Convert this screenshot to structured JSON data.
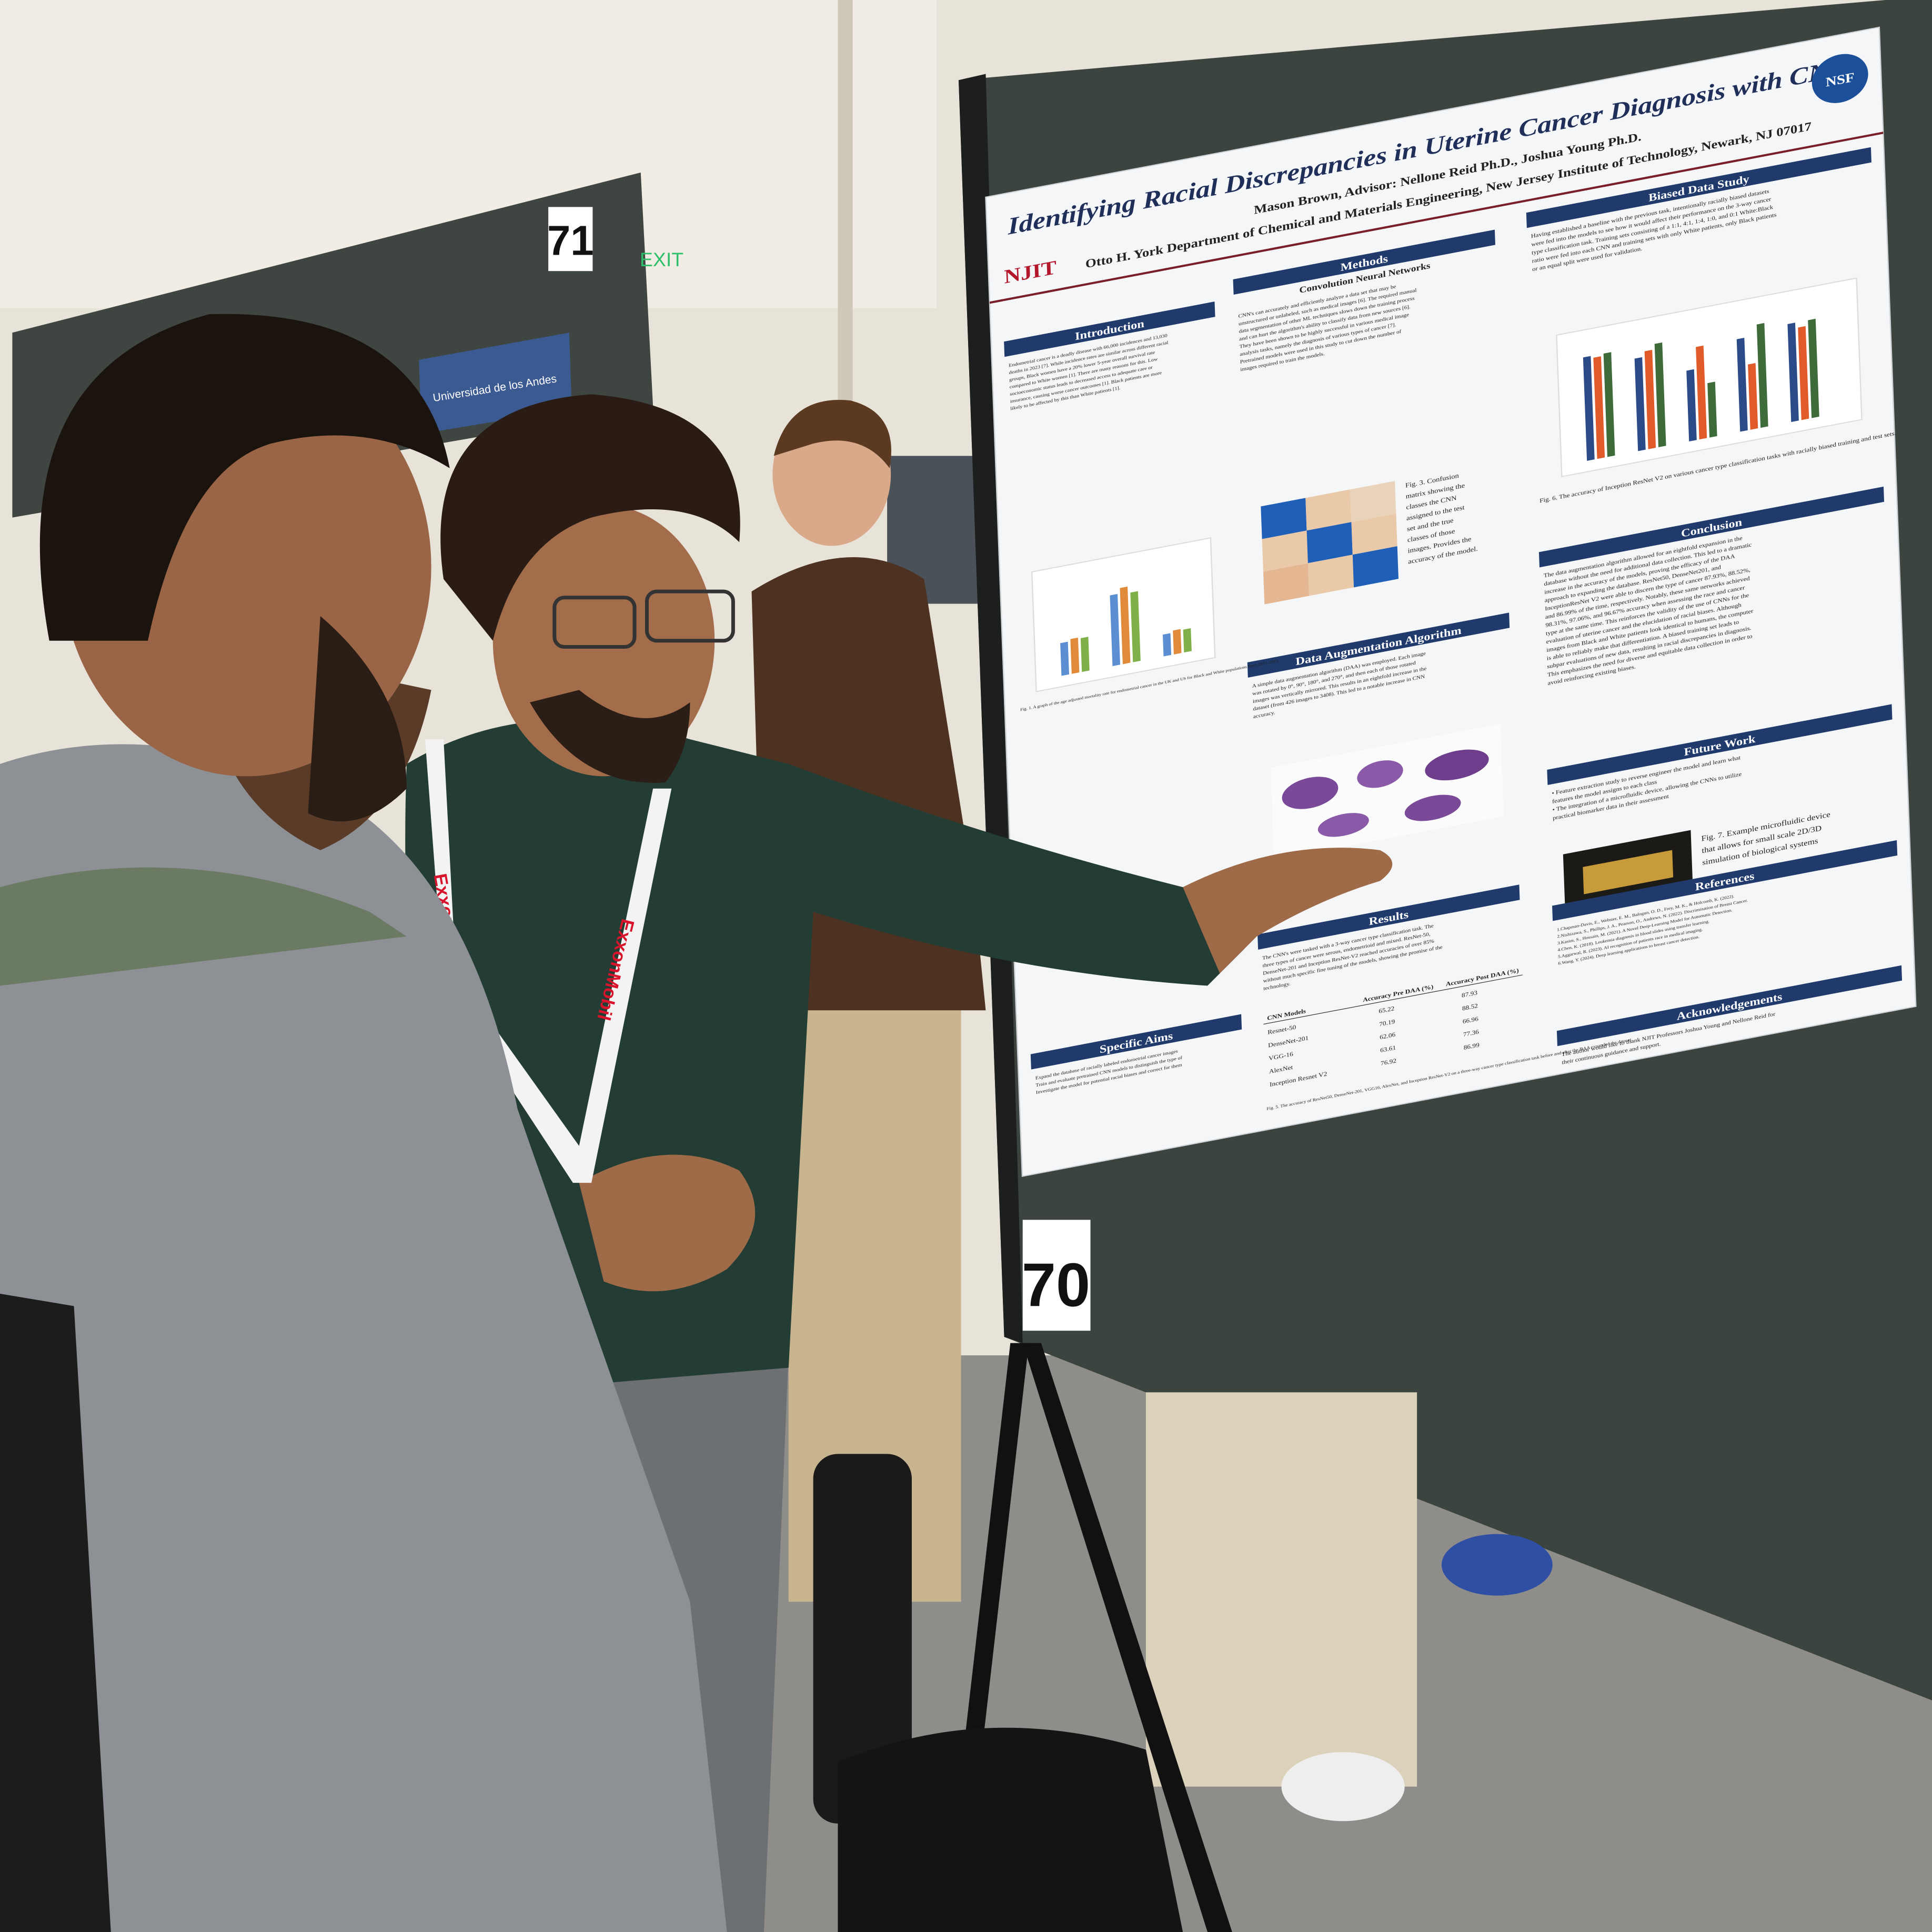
{
  "signs": {
    "booth_left": "71",
    "exit": "EXIT",
    "university": "Universidad de los Andes",
    "booth_right": "70"
  },
  "lanyard": "ExxonMobil",
  "poster": {
    "title": "Identifying Racial Discrepancies in Uterine Cancer Diagnosis with CNNs",
    "authors": "Mason Brown, Advisor: Nellone Reid Ph.D., Joshua Young Ph.D.",
    "affiliation": "Otto H. York Department of Chemical and Materials Engineering, New Jersey Institute of Technology, Newark, NJ 07017",
    "logo_left": "NJIT",
    "logo_right": "NSF",
    "sections": [
      {
        "heading": "Introduction",
        "lines": [
          "Endometrial cancer is a deadly disease with 66,000 incidences and 13,030",
          "deaths in 2023 [7]. While incidence rates are similar across different racial",
          "groups, Black women have a 20% lower 5-year overall survival rate",
          "compared to White women [1]. There are many reasons for this. Low",
          "socioeconomic status leads to decreased access to adequate care or",
          "insurance, causing worse cancer outcomes [1]. Black patients are more",
          "likely to be affected by this than White patients [1]."
        ]
      },
      {
        "heading": "Specific Aims",
        "lines": [
          "Expand the database of racially labeled endometrial cancer images",
          "Train and evaluate pretrained CNN models to distinguish the type of",
          "Investigate the model for potential racial biases and correct for them"
        ]
      },
      {
        "heading": "Methods",
        "subheading": "Convolution Neural Networks",
        "lines": [
          "CNN's can accurately and efficiently analyze a data set that may be",
          "unstructured or unlabeled, such as medical images [6]. The required manual",
          "data segmentation of other ML techniques slows down the training process",
          "and can hurt the algorithm's ability to classify data from new sources [6].",
          "They have been shown to be highly successful in various medical image",
          "analysis tasks, namely the diagnosis of various types of cancer [7].",
          "Pretrained models were used in this study to cut down the number of",
          "images required to train the models."
        ]
      },
      {
        "heading": "Data Augmentation Algorithm",
        "lines": [
          "A simple data augmentation algorithm (DAA) was employed. Each image",
          "was rotated by 0°, 90°, 180°, and 270°, and then each of those rotated",
          "images was vertically mirrored. This results in an eightfold increase in the",
          "dataset (from 426 images to 3408). This led to a notable increase in CNN",
          "accuracy."
        ]
      },
      {
        "heading": "Results",
        "lines": [
          "The CNN's were tasked with a 3-way cancer type classification task. The",
          "three types of cancer were serous, endometrioid and mixed. ResNet-50,",
          "DenseNet-201 and Inception ResNet-V2 reached accuracies of over 85%",
          "without much specific fine tuning of the models, showing the promise of the",
          "technology."
        ]
      },
      {
        "heading": "Biased Data Study",
        "lines": [
          "Having established a baseline with the previous task, intentionally racially biased datasets",
          "were fed into the models to see how it would affect their performance on the 3-way cancer",
          "type classification task. Training sets consisting of a 1:1, 4:1, 1:4, 1:0, and 0:1 White:Black",
          "ratio were fed into each CNN and training sets with only White patients, only Black patients",
          "or an equal split were used for validation."
        ]
      },
      {
        "heading": "Conclusion",
        "lines": [
          "The data augmentation algorithm allowed for an eightfold expansion in the",
          "database without the need for additional data collection. This led to a dramatic",
          "increase in the accuracy of the models, proving the efficacy of the DAA",
          "approach to expanding the database. ResNet50, DenseNet201, and",
          "InceptionResNet V2 were able to discern the type of cancer 87.93%, 88.52%,",
          "and 86.99% of the time, respectively. Notably, these same networks achieved",
          "98.31%, 97.06%, and 96.67% accuracy when assessing the race and cancer",
          "type at the same time. This reinforces the validity of the use of CNNs for the",
          "evaluation of uterine cancer and the elucidation of racial biases. Although",
          "images from Black and White patients look identical to humans, the computer",
          "is able to reliably make that differentiation. A biased training set leads to",
          "subpar evaluations of new data, resulting in racial discrepancies in diagnosis.",
          "This emphasizes the need for diverse and equitable data collection in order to",
          "avoid reinforcing existing biases."
        ]
      },
      {
        "heading": "Future Work",
        "lines": [
          "• Feature extraction study to reverse engineer the model and learn what",
          "  features the model assigns to each class",
          "• The integration of a microfluidic device, allowing the CNNs to utilize",
          "  practical biomarker data in their assessment"
        ]
      },
      {
        "heading": "References",
        "lines": [
          "1.Chapman-Davis, E., Webster, E. M., Balogun, O. D., Frey, M. K., & Holcomb, K. (2022).",
          "2.Nishizawa, S., Phillips, J. A., Pearson, O., Andrews, N. (2022). Discrimination of Breast Cancer.",
          "3.Kasim, S., Hossain, M. (2021). A Novel Deep-Learning Model for Automatic Detection.",
          "4.Chen, K. (2018). Leukemia diagnosis in blood slides using transfer learning.",
          "5.Aggarwal, R. (2023). AI recognition of patients race in medical imaging.",
          "6.Wang, Y. (2024). Deep learning applications to breast cancer detection."
        ]
      },
      {
        "heading": "Acknowledgements",
        "lines": [
          "The author would like to thank NJIT Professors Joshua Young and Nellone Reid for",
          "their continuous guidance and support."
        ]
      }
    ],
    "fig1_caption": "Fig. 1. A graph of the age adjusted mortality rate for endometrial cancer in the UK and US for Black and White populations from 2015-2019.",
    "fig3_caption": [
      "Fig. 3. Confusion",
      "matrix showing the",
      "classes the CNN",
      "assigned to the test",
      "set and the true",
      "classes of those",
      "images. Provides the",
      "accuracy of the model."
    ],
    "fig6_caption": "Fig. 6. The accuracy of Inception ResNet V2 on various cancer type classification tasks with racially biased training and test sets.",
    "fig7_caption": [
      "Fig. 7. Example microfluidic device",
      "that allows for small scale 2D/3D",
      "simulation of biological systems"
    ],
    "table": {
      "header": [
        "CNN Models",
        "Accuracy Pre DAA (%)",
        "Accuracy Post DAA (%)"
      ],
      "rows": [
        [
          "Resnet-50",
          "65.22",
          "87.93"
        ],
        [
          "DenseNet-201",
          "70.19",
          "88.52"
        ],
        [
          "VGG-16",
          "62.06",
          "66.96"
        ],
        [
          "AlexNet",
          "63.61",
          "77.36"
        ],
        [
          "Inception Resnet V2",
          "76.92",
          "86.99"
        ]
      ]
    },
    "fig5_caption": "Fig. 5. The accuracy of ResNet50, DenseNet-201, VGG16, AlexNet, and Inception ResNet-V2 on a three-way cancer type classification task before and after the DAA expanded the dataset."
  }
}
